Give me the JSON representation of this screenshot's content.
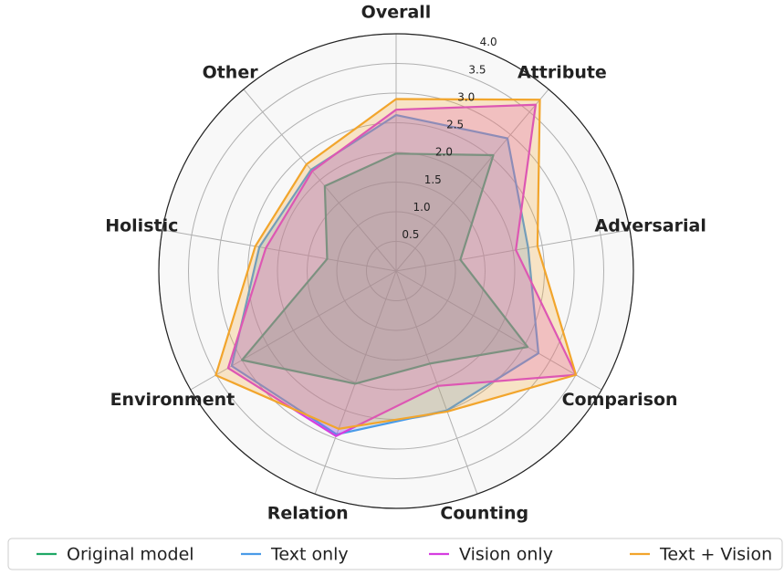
{
  "chart_data": {
    "type": "radar",
    "categories": [
      "Overall",
      "Attribute",
      "Adversarial",
      "Comparison",
      "Counting",
      "Relation",
      "Environment",
      "Holistic",
      "Other"
    ],
    "series": [
      {
        "name": "Original model",
        "color": "#1fa866",
        "values": [
          1.98,
          2.55,
          1.1,
          2.56,
          1.66,
          2.02,
          3.0,
          1.18,
          1.87
        ]
      },
      {
        "name": "Text only",
        "color": "#4a9be8",
        "values": [
          2.63,
          2.92,
          2.26,
          2.77,
          2.5,
          2.93,
          3.2,
          2.34,
          2.23
        ]
      },
      {
        "name": "Vision only",
        "color": "#d63ee0",
        "values": [
          2.72,
          3.66,
          2.05,
          3.5,
          2.06,
          2.96,
          3.27,
          2.23,
          2.2
        ]
      },
      {
        "name": "Text + Vision",
        "color": "#f2a52c",
        "values": [
          2.9,
          3.77,
          2.42,
          3.5,
          2.52,
          2.83,
          3.51,
          2.41,
          2.35
        ]
      }
    ],
    "ylim": [
      0,
      4
    ],
    "yticks": [
      0.5,
      {
        "value": 1,
        "label": "1.0"
      },
      1.5,
      {
        "value": 2,
        "label": "2.0"
      },
      2.5,
      {
        "value": 3,
        "label": "3.0"
      },
      3.5,
      {
        "value": 4,
        "label": "4.0"
      }
    ],
    "grid": true,
    "legend": "bottom"
  }
}
